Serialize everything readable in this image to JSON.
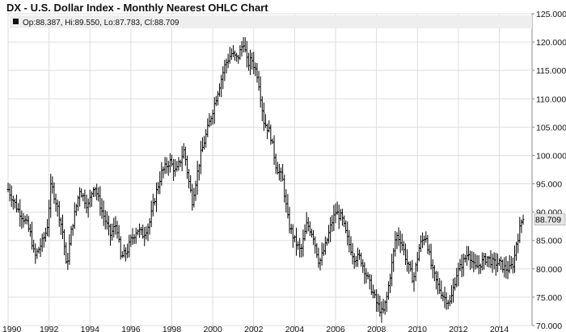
{
  "chart_data": {
    "type": "ohlc",
    "title": "DX - U.S. Dollar Index - Monthly Nearest OHLC Chart",
    "legend": {
      "text": "Op:88.387, Hi:89.550, Lo:87.783, Cl:88.709"
    },
    "last_value_label": "88.709",
    "grid": true,
    "colors": {
      "bars": "#000000",
      "grid": "#dddddd",
      "legend_bg": "#eeeeee",
      "last_label_bg": "#e6e6e6"
    },
    "y_axis": {
      "range": [
        70,
        125
      ],
      "ticks": [
        "125.000",
        "120.000",
        "115.000",
        "110.000",
        "105.000",
        "100.000",
        "95.000",
        "90.000",
        "85.000",
        "80.000",
        "75.000",
        "70.000"
      ],
      "tick_values": [
        125,
        120,
        115,
        110,
        105,
        100,
        95,
        90,
        85,
        80,
        75,
        70
      ]
    },
    "x_axis": {
      "range": [
        1990.0,
        2015.6
      ],
      "ticks": [
        "1990",
        "1992",
        "1994",
        "1996",
        "1998",
        "2000",
        "2002",
        "2004",
        "2006",
        "2008",
        "2010",
        "2012",
        "2014"
      ],
      "tick_values": [
        1990,
        1992,
        1994,
        1996,
        1998,
        2000,
        2002,
        2004,
        2006,
        2008,
        2010,
        2012,
        2014
      ]
    },
    "series_anchors": {
      "x": [
        1990.0,
        1990.4,
        1990.9,
        1991.1,
        1991.3,
        1991.7,
        1991.9,
        1992.1,
        1992.4,
        1992.7,
        1992.85,
        1993.1,
        1993.5,
        1993.9,
        1994.2,
        1994.6,
        1995.0,
        1995.3,
        1995.5,
        1995.8,
        1996.0,
        1996.3,
        1996.6,
        1996.9,
        1997.2,
        1997.5,
        1997.9,
        1998.2,
        1998.6,
        1998.8,
        1999.0,
        1999.4,
        1999.7,
        2000.0,
        2000.3,
        2000.6,
        2000.9,
        2001.2,
        2001.5,
        2001.7,
        2001.9,
        2002.2,
        2002.5,
        2002.8,
        2003.1,
        2003.4,
        2003.7,
        2004.0,
        2004.3,
        2004.6,
        2004.9,
        2005.2,
        2005.5,
        2005.8,
        2006.0,
        2006.3,
        2006.6,
        2006.9,
        2007.2,
        2007.5,
        2007.8,
        2008.0,
        2008.3,
        2008.5,
        2008.8,
        2008.95,
        2009.2,
        2009.5,
        2009.8,
        2010.1,
        2010.4,
        2010.7,
        2011.0,
        2011.3,
        2011.6,
        2011.9,
        2012.2,
        2012.5,
        2012.8,
        2013.1,
        2013.4,
        2013.7,
        2014.0,
        2014.3,
        2014.5,
        2014.7,
        2014.85,
        2014.95,
        2015.05,
        2015.15
      ],
      "close": [
        94,
        91,
        88,
        86,
        82,
        85,
        87,
        95,
        91,
        86,
        80,
        87,
        94,
        91,
        95,
        90,
        86,
        88,
        82,
        83,
        85,
        87,
        86,
        88,
        93,
        97,
        99,
        97,
        101,
        96,
        92,
        100,
        104,
        108,
        112,
        116,
        118,
        117,
        120,
        116,
        117,
        114,
        106,
        104,
        98,
        96,
        88,
        85,
        83,
        88,
        86,
        81,
        84,
        88,
        90,
        89,
        85,
        82,
        82,
        79,
        76,
        74,
        72,
        75,
        82,
        86,
        85,
        81,
        78,
        84,
        86,
        80,
        77,
        75,
        74,
        79,
        81,
        83,
        80,
        81,
        82,
        81,
        81,
        80,
        80,
        81,
        85,
        86,
        88,
        88.7
      ]
    },
    "last_bar": {
      "open": 88.387,
      "high": 89.55,
      "low": 87.783,
      "close": 88.709
    }
  }
}
